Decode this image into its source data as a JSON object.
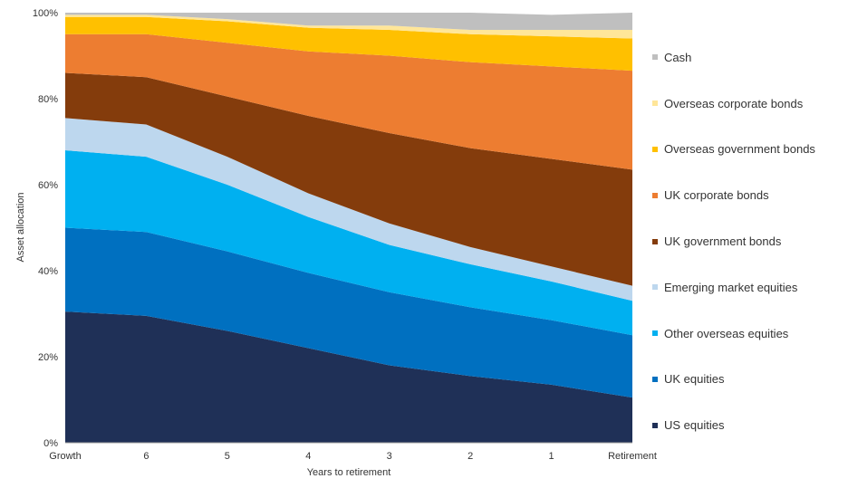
{
  "chart_data": {
    "type": "area",
    "stacked": true,
    "xlabel": "Years to retirement",
    "ylabel": "Asset allocation",
    "categories": [
      "Growth",
      "6",
      "5",
      "4",
      "3",
      "2",
      "1",
      "Retirement"
    ],
    "ylim": [
      0,
      100
    ],
    "yticks": [
      "0%",
      "20%",
      "40%",
      "60%",
      "80%",
      "100%"
    ],
    "legend_position": "right",
    "grid": false,
    "series": [
      {
        "name": "US equities",
        "color": "#1f3057",
        "values": [
          30.5,
          29.5,
          26,
          22,
          18,
          15.5,
          13.5,
          10.5
        ]
      },
      {
        "name": "UK equities",
        "color": "#0070c0",
        "values": [
          19.5,
          19.5,
          18.5,
          17.5,
          17,
          16,
          15,
          14.5
        ]
      },
      {
        "name": "Other overseas equities",
        "color": "#00b0f0",
        "values": [
          18,
          17.5,
          15.5,
          13,
          11,
          10,
          9,
          8
        ]
      },
      {
        "name": "Emerging market equities",
        "color": "#bdd7ee",
        "values": [
          7.5,
          7.5,
          6.5,
          5.5,
          5,
          4,
          3.5,
          3.5
        ]
      },
      {
        "name": "UK government bonds",
        "color": "#843c0c",
        "values": [
          10.5,
          11,
          14,
          18,
          21,
          23,
          25,
          27
        ]
      },
      {
        "name": "UK corporate bonds",
        "color": "#ed7d31",
        "values": [
          9,
          10,
          12.5,
          15,
          18,
          20,
          21.5,
          23
        ]
      },
      {
        "name": "Overseas government bonds",
        "color": "#ffc000",
        "values": [
          4,
          4,
          5,
          5.5,
          6,
          6.5,
          7,
          7.5
        ]
      },
      {
        "name": "Overseas corporate bonds",
        "color": "#ffe699",
        "values": [
          0.5,
          0.5,
          0.5,
          0.5,
          1,
          1,
          1.5,
          2
        ]
      },
      {
        "name": "Cash",
        "color": "#bfbfbf",
        "values": [
          0.5,
          0.5,
          1.5,
          3,
          3,
          4,
          3.5,
          4
        ]
      }
    ]
  }
}
